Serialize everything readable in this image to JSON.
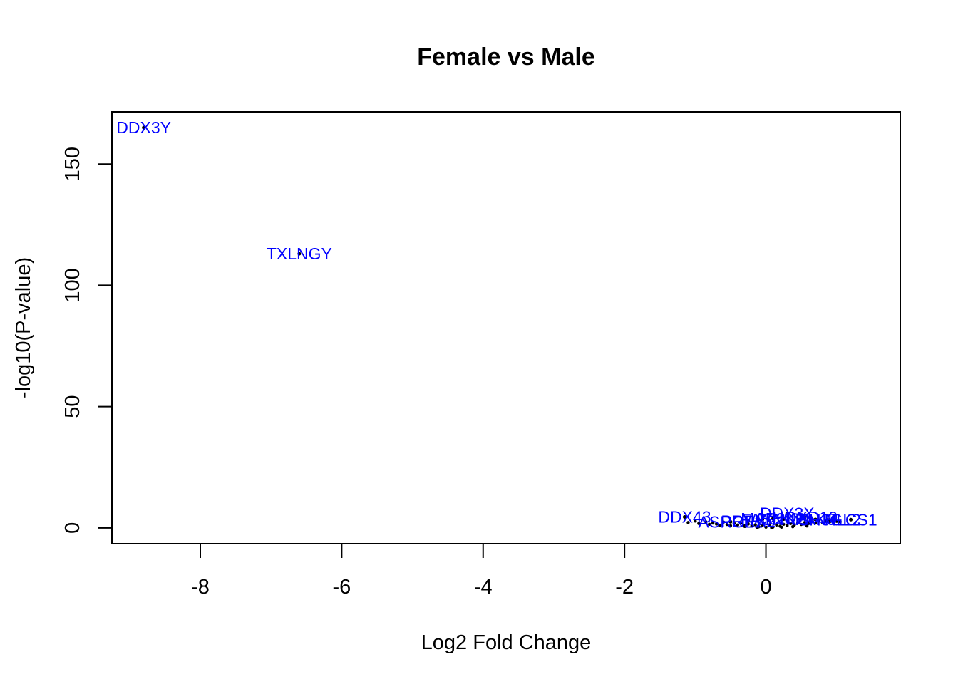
{
  "chart_data": {
    "type": "scatter",
    "title": "Female vs Male",
    "xlabel": "Log2 Fold Change",
    "ylabel": "-log10(P-value)",
    "xlim": [
      -9.25,
      1.9
    ],
    "ylim": [
      -6.5,
      171.5
    ],
    "xticks": [
      -8,
      -6,
      -4,
      -2,
      0
    ],
    "yticks": [
      0,
      50,
      100,
      150
    ],
    "label_color": "#0000ff",
    "point_color": "#000000",
    "labeled_points": [
      {
        "name": "DDX3Y",
        "x": -8.8,
        "y": 165
      },
      {
        "name": "TXLNGY",
        "x": -6.6,
        "y": 113
      },
      {
        "name": "DDX43",
        "x": -1.15,
        "y": 4.5
      },
      {
        "name": "DDX3X",
        "x": 0.3,
        "y": 6
      },
      {
        "name": "ASRGL1",
        "x": -0.5,
        "y": 2.5
      },
      {
        "name": "PRRX2",
        "x": -0.25,
        "y": 2.8
      },
      {
        "name": "FASN",
        "x": -0.05,
        "y": 3.5
      },
      {
        "name": "MAP2K2",
        "x": 0.1,
        "y": 3.8
      },
      {
        "name": "CCND1",
        "x": 0.25,
        "y": 3.6
      },
      {
        "name": "HOXD10",
        "x": 0.55,
        "y": 4.3
      },
      {
        "name": "PAK3",
        "x": 0.7,
        "y": 3.5
      },
      {
        "name": "SH3GL2",
        "x": 0.9,
        "y": 3.3
      },
      {
        "name": "HLCS1",
        "x": 1.2,
        "y": 3.4
      }
    ],
    "background_points": [
      {
        "x": -1.1,
        "y": 2.2
      },
      {
        "x": -1.0,
        "y": 2.8
      },
      {
        "x": -0.95,
        "y": 1.8
      },
      {
        "x": -0.85,
        "y": 2.5
      },
      {
        "x": -0.75,
        "y": 2.0
      },
      {
        "x": -0.7,
        "y": 1.6
      },
      {
        "x": -0.6,
        "y": 2.4
      },
      {
        "x": -0.55,
        "y": 1.4
      },
      {
        "x": -0.45,
        "y": 1.9
      },
      {
        "x": -0.4,
        "y": 1.2
      },
      {
        "x": -0.35,
        "y": 2.1
      },
      {
        "x": -0.3,
        "y": 1.0
      },
      {
        "x": -0.25,
        "y": 1.6
      },
      {
        "x": -0.2,
        "y": 0.8
      },
      {
        "x": -0.15,
        "y": 1.3
      },
      {
        "x": -0.1,
        "y": 0.5
      },
      {
        "x": -0.05,
        "y": 1.1
      },
      {
        "x": 0.0,
        "y": 0.3
      },
      {
        "x": 0.05,
        "y": 0.9
      },
      {
        "x": 0.1,
        "y": 0.4
      },
      {
        "x": 0.15,
        "y": 1.2
      },
      {
        "x": 0.2,
        "y": 0.7
      },
      {
        "x": 0.25,
        "y": 1.5
      },
      {
        "x": 0.3,
        "y": 0.9
      },
      {
        "x": 0.35,
        "y": 1.8
      },
      {
        "x": 0.4,
        "y": 1.1
      },
      {
        "x": 0.45,
        "y": 2.0
      },
      {
        "x": 0.5,
        "y": 1.4
      },
      {
        "x": 0.55,
        "y": 2.3
      },
      {
        "x": 0.6,
        "y": 1.7
      },
      {
        "x": 0.65,
        "y": 2.5
      },
      {
        "x": 0.7,
        "y": 2.0
      },
      {
        "x": 0.75,
        "y": 2.8
      },
      {
        "x": 0.8,
        "y": 2.2
      },
      {
        "x": 0.85,
        "y": 2.9
      },
      {
        "x": 0.9,
        "y": 2.4
      },
      {
        "x": 0.95,
        "y": 2.6
      },
      {
        "x": 1.0,
        "y": 2.7
      },
      {
        "x": 1.05,
        "y": 2.5
      },
      {
        "x": -0.5,
        "y": 0.9
      },
      {
        "x": -0.3,
        "y": 0.6
      },
      {
        "x": -0.12,
        "y": 0.2
      },
      {
        "x": 0.08,
        "y": 0.1
      },
      {
        "x": 0.22,
        "y": 0.3
      },
      {
        "x": 0.38,
        "y": 0.5
      },
      {
        "x": -0.65,
        "y": 1.1
      },
      {
        "x": -0.8,
        "y": 1.5
      },
      {
        "x": 0.58,
        "y": 0.8
      }
    ]
  }
}
